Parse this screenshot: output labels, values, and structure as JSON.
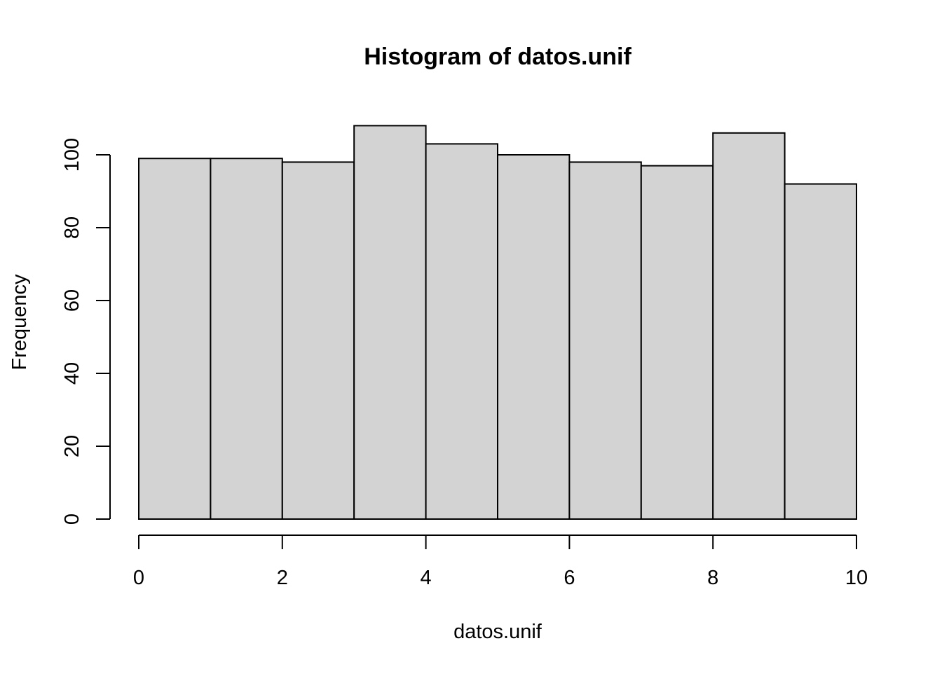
{
  "chart_data": {
    "type": "bar",
    "subtype": "histogram",
    "title": "Histogram of datos.unif",
    "xlabel": "datos.unif",
    "ylabel": "Frequency",
    "bins": [
      {
        "start": 0,
        "end": 1,
        "count": 99
      },
      {
        "start": 1,
        "end": 2,
        "count": 99
      },
      {
        "start": 2,
        "end": 3,
        "count": 98
      },
      {
        "start": 3,
        "end": 4,
        "count": 108
      },
      {
        "start": 4,
        "end": 5,
        "count": 103
      },
      {
        "start": 5,
        "end": 6,
        "count": 100
      },
      {
        "start": 6,
        "end": 7,
        "count": 98
      },
      {
        "start": 7,
        "end": 8,
        "count": 97
      },
      {
        "start": 8,
        "end": 9,
        "count": 106
      },
      {
        "start": 9,
        "end": 10,
        "count": 92
      }
    ],
    "xlim": [
      0,
      10
    ],
    "ylim": [
      0,
      100
    ],
    "x_ticks": [
      0,
      2,
      4,
      6,
      8,
      10
    ],
    "y_ticks": [
      0,
      20,
      40,
      60,
      80,
      100
    ],
    "x_tick_labels": [
      "0",
      "2",
      "4",
      "6",
      "8",
      "10"
    ],
    "y_tick_labels": [
      "0",
      "20",
      "40",
      "60",
      "80",
      "100"
    ],
    "grid": false,
    "legend": "none",
    "bar_fill": "#d3d3d3",
    "bar_border": "#000000"
  }
}
